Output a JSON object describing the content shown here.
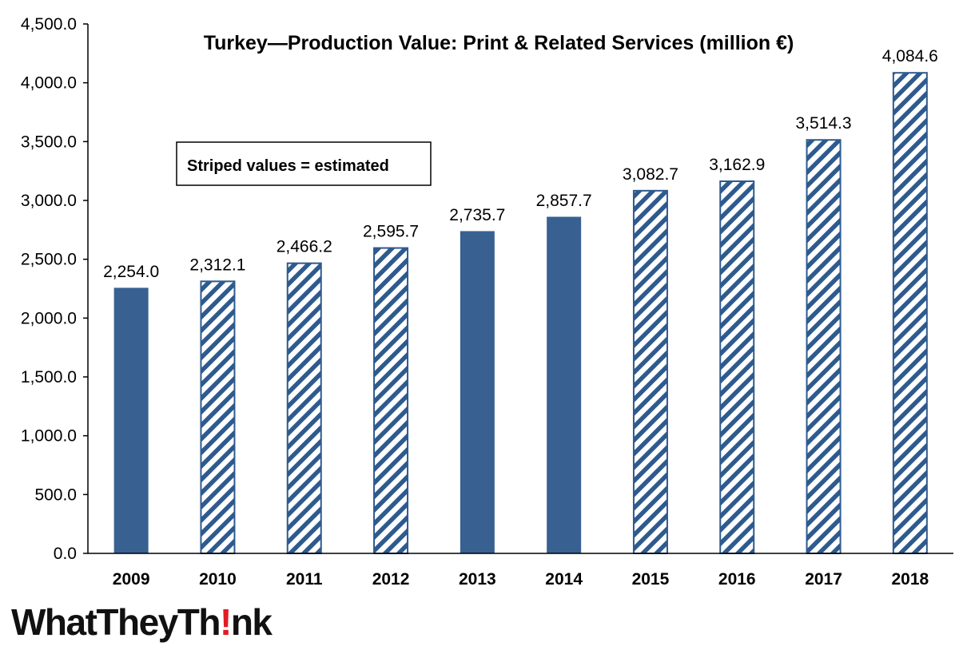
{
  "chart_data": {
    "type": "bar",
    "title": "Turkey—Production Value: Print & Related Services (million €)",
    "categories": [
      "2009",
      "2010",
      "2011",
      "2012",
      "2013",
      "2014",
      "2015",
      "2016",
      "2017",
      "2018"
    ],
    "values": [
      2254.0,
      2312.1,
      2466.2,
      2595.7,
      2735.7,
      2857.7,
      3082.7,
      3162.9,
      3514.3,
      4084.6
    ],
    "value_labels": [
      "2,254.0",
      "2,312.1",
      "2,466.2",
      "2,595.7",
      "2,735.7",
      "2,857.7",
      "3,082.7",
      "3,162.9",
      "3,514.3",
      "4,084.6"
    ],
    "estimated": [
      false,
      true,
      true,
      true,
      false,
      false,
      true,
      true,
      true,
      true
    ],
    "ylim": [
      0,
      4500
    ],
    "yticks": [
      0,
      500,
      1000,
      1500,
      2000,
      2500,
      3000,
      3500,
      4000,
      4500
    ],
    "ytick_labels": [
      "0.0",
      "500.0",
      "1,000.0",
      "1,500.0",
      "2,000.0",
      "2,500.0",
      "3,000.0",
      "3,500.0",
      "4,000.0",
      "4,500.0"
    ],
    "xlabel": "",
    "ylabel": "",
    "grid": false,
    "legend_note": "Striped values = estimated",
    "colors": {
      "bar": "#386192",
      "stripe": "#2e5a8e",
      "axis": "#000000"
    }
  },
  "brand": {
    "logo_before": "WhatTheyTh",
    "logo_bang": "!",
    "logo_after": "nk",
    "bang_color": "#e31b23"
  }
}
